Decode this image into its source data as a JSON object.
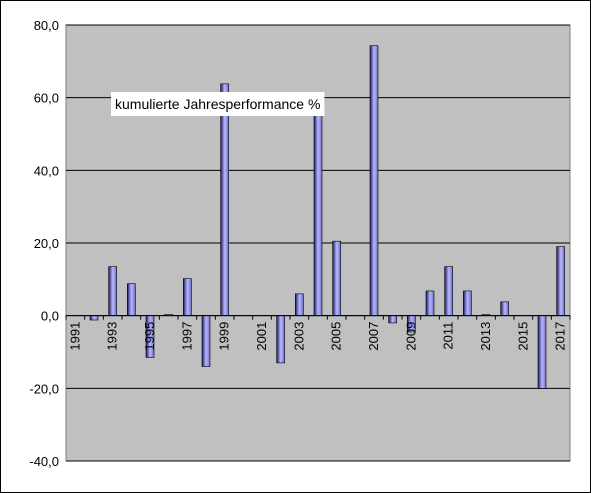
{
  "chart_data": {
    "type": "bar",
    "title": "kumulierte Jahresperformance %",
    "xlabel": "",
    "ylabel": "",
    "ylim": [
      -40,
      80
    ],
    "yticks": [
      -40,
      -20,
      0,
      20,
      40,
      60,
      80
    ],
    "ytick_labels": [
      "-40,0",
      "-20,0",
      "0,0",
      "20,0",
      "40,0",
      "60,0",
      "80,0"
    ],
    "grid": true,
    "legend": "none",
    "colors": {
      "plot_background": "#c0c0c0",
      "bar_fill_top": "#b8b8ff",
      "bar_fill_bottom": "#1a1a66",
      "gridline": "#000000"
    },
    "categories": [
      "1991",
      "1992",
      "1993",
      "1994",
      "1995",
      "1996",
      "1997",
      "1998",
      "1999",
      "2000",
      "2001",
      "2002",
      "2003",
      "2004",
      "2005",
      "2006",
      "2007",
      "2008",
      "2009",
      "2010",
      "2011",
      "2012",
      "2013",
      "2014",
      "2015",
      "2016",
      "2017"
    ],
    "xtick_labels": [
      "1991",
      "1993",
      "1995",
      "1997",
      "1999",
      "2001",
      "2003",
      "2005",
      "2007",
      "2009",
      "2011",
      "2013",
      "2015",
      "2017"
    ],
    "series": [
      {
        "values": [
          0,
          -1.2,
          13.5,
          8.8,
          -11.5,
          0.3,
          10.2,
          -14,
          63.8,
          0,
          0,
          -13,
          6,
          55.5,
          20.5,
          0,
          74.3,
          -2,
          -4.5,
          6.8,
          13.5,
          6.8,
          0.3,
          3.8,
          0,
          -20,
          19
        ]
      }
    ]
  }
}
